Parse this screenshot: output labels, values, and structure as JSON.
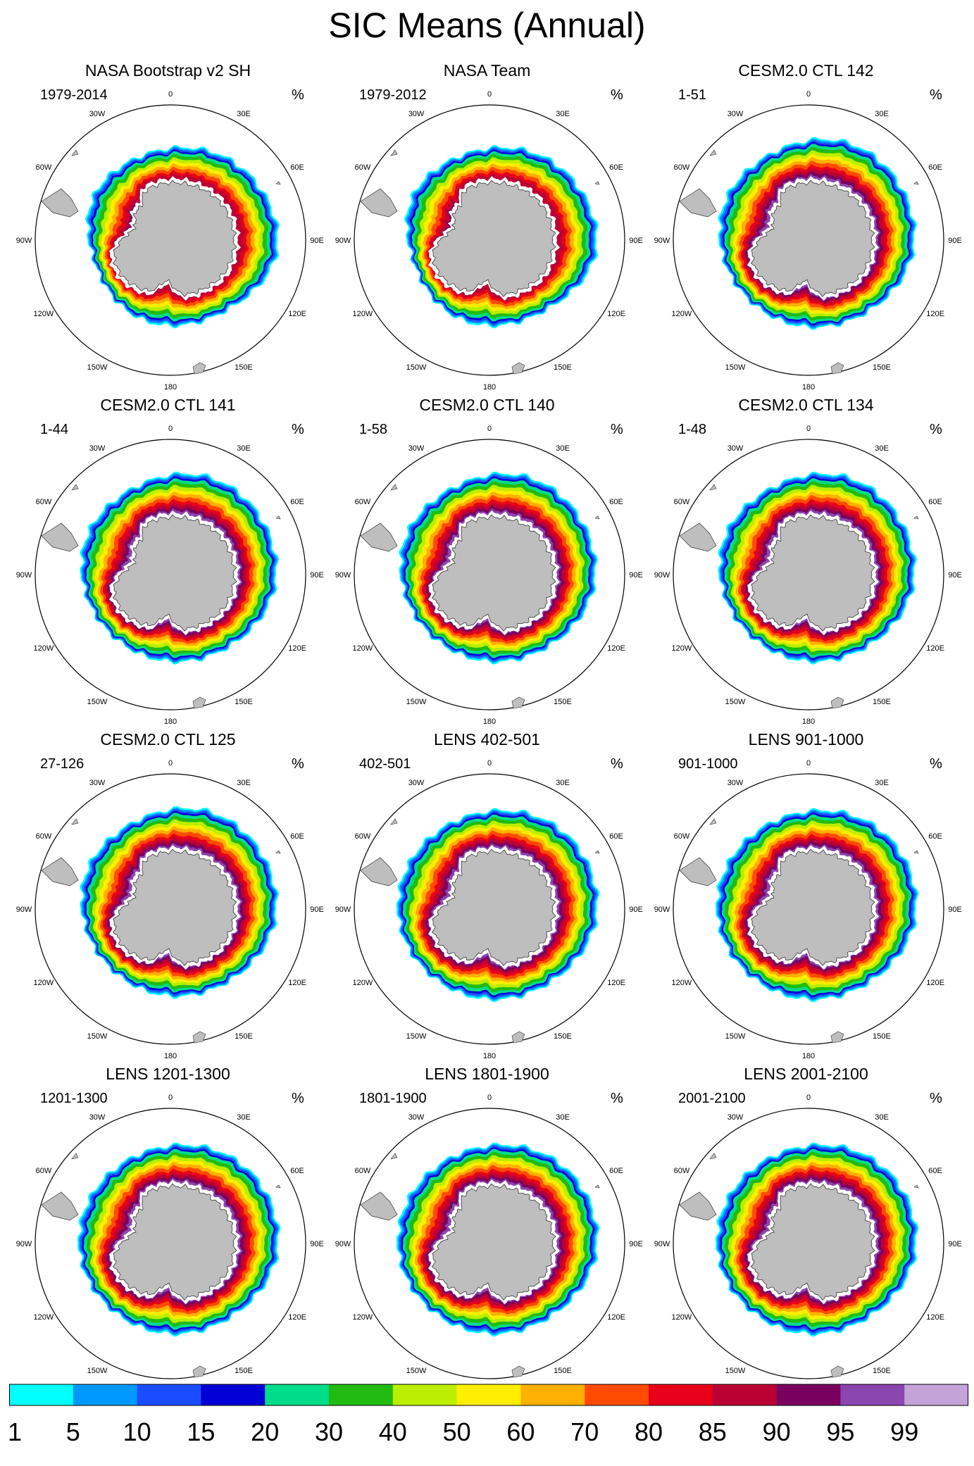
{
  "title": "SIC Means (Annual)",
  "units": "%",
  "lon_labels": [
    "0",
    "30E",
    "60E",
    "90E",
    "120E",
    "150E",
    "180",
    "150W",
    "120W",
    "90W",
    "60W",
    "30W"
  ],
  "panels": [
    {
      "title": "NASA Bootstrap v2 SH",
      "years": "1979-2014",
      "shape": "obs"
    },
    {
      "title": "NASA Team",
      "years": "1979-2012",
      "shape": "obs2"
    },
    {
      "title": "CESM2.0 CTL 142",
      "years": "1-51",
      "shape": "model"
    },
    {
      "title": "CESM2.0 CTL 141",
      "years": "1-44",
      "shape": "model"
    },
    {
      "title": "CESM2.0 CTL 140",
      "years": "1-58",
      "shape": "model"
    },
    {
      "title": "CESM2.0 CTL 134",
      "years": "1-48",
      "shape": "model"
    },
    {
      "title": "CESM2.0 CTL 125",
      "years": "27-126",
      "shape": "model"
    },
    {
      "title": "LENS 402-501",
      "years": "402-501",
      "shape": "lens"
    },
    {
      "title": "LENS 901-1000",
      "years": "901-1000",
      "shape": "lens"
    },
    {
      "title": "LENS 1201-1300",
      "years": "1201-1300",
      "shape": "lens"
    },
    {
      "title": "LENS 1801-1900",
      "years": "1801-1900",
      "shape": "lens"
    },
    {
      "title": "LENS 2001-2100",
      "years": "2001-2100",
      "shape": "lens"
    }
  ],
  "chart_data": {
    "type": "contour-map",
    "variable": "Sea Ice Concentration",
    "projection": "south polar stereographic",
    "colorbar": {
      "levels": [
        "1",
        "5",
        "10",
        "15",
        "20",
        "30",
        "40",
        "50",
        "60",
        "70",
        "80",
        "85",
        "90",
        "95",
        "99"
      ],
      "colors": [
        "#00FFFF",
        "#0099FF",
        "#1B4DFF",
        "#0000D6",
        "#00DD88",
        "#22BB11",
        "#BBEE00",
        "#FFEE00",
        "#FFB000",
        "#FF4A00",
        "#E8001A",
        "#BB0033",
        "#7A0060",
        "#8B45AE",
        "#C3A3D8"
      ]
    }
  }
}
